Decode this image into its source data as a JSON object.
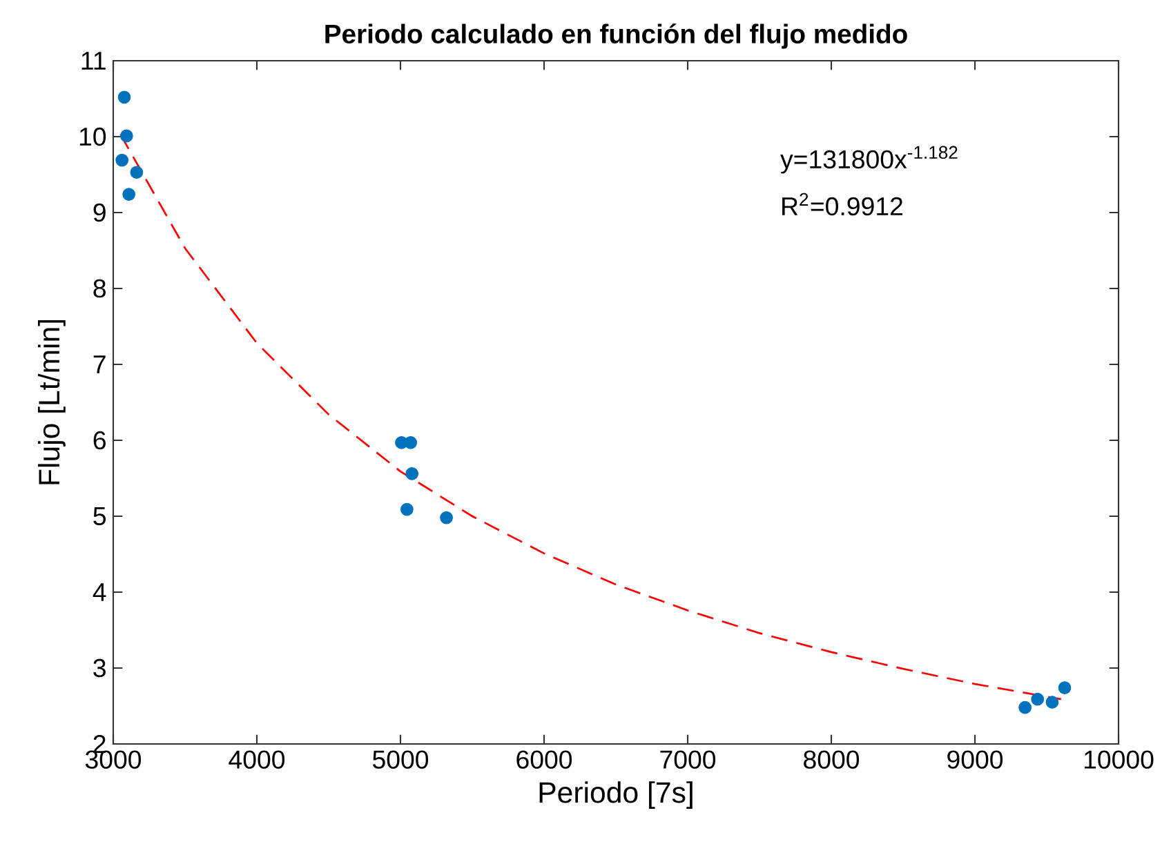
{
  "chart_data": {
    "type": "scatter",
    "title": "Periodo calculado en función del flujo medido",
    "xlabel": "Periodo [7s]",
    "ylabel": "Flujo [Lt/min]",
    "annotations": [
      "y=131800x$^{-1.182}$",
      "R$^{2}$=0.9912"
    ],
    "xlim": [
      3000,
      10000
    ],
    "ylim": [
      2,
      11
    ],
    "xticks": [
      3000,
      4000,
      5000,
      6000,
      7000,
      8000,
      9000,
      10000
    ],
    "yticks": [
      2,
      3,
      4,
      5,
      6,
      7,
      8,
      9,
      10,
      11
    ],
    "grid": false,
    "series": [
      {
        "color": "#0072bd",
        "marker": "circle",
        "x": [
          3077,
          3093,
          3061,
          3163,
          3109,
          5007,
          5071,
          5080,
          5045,
          5320,
          9349,
          9436,
          9538,
          9625
        ],
        "values": [
          10.52,
          10.01,
          9.69,
          9.53,
          9.24,
          5.97,
          5.97,
          5.56,
          5.09,
          4.98,
          2.48,
          2.59,
          2.55,
          2.74
        ]
      },
      {
        "type": "line",
        "color": "#ff0000",
        "marker": "none",
        "line_style": "dashed",
        "x": [
          3050,
          3500,
          4000,
          4500,
          5000,
          5500,
          6000,
          6500,
          7000,
          7500,
          8000,
          8500,
          9000,
          9600
        ],
        "values": [
          10.03,
          8.53,
          7.28,
          6.34,
          5.59,
          5.0,
          4.51,
          4.1,
          3.76,
          3.46,
          3.21,
          2.99,
          2.79,
          2.59
        ]
      }
    ]
  }
}
